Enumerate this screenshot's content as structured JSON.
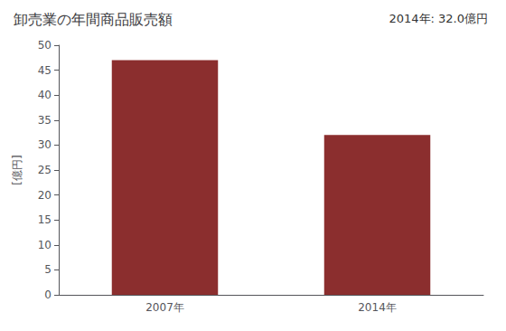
{
  "chart_data": {
    "type": "bar",
    "title": "卸売業の年間商品販売額",
    "ylabel": "[億円]",
    "annotation": "2014年: 32.0億円",
    "categories": [
      "2007年",
      "2014年"
    ],
    "values": [
      47.0,
      32.0
    ],
    "color": "#8B2E2E",
    "ylim": [
      0,
      50
    ],
    "yticks": [
      0,
      5,
      10,
      15,
      20,
      25,
      30,
      35,
      40,
      45,
      50
    ],
    "grid": false
  }
}
